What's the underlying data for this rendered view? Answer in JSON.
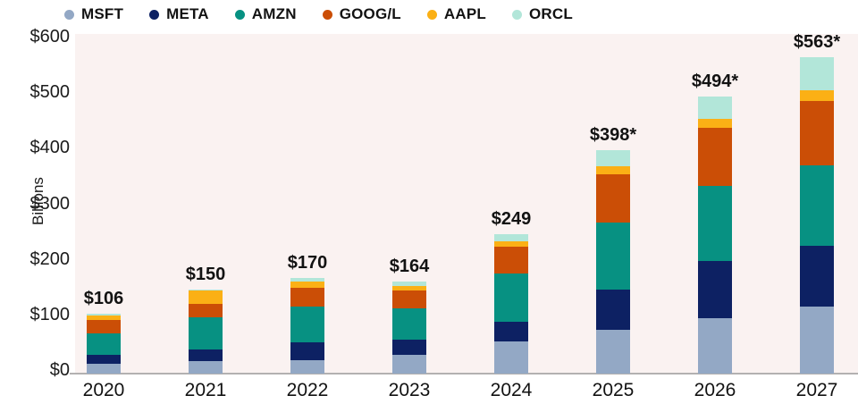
{
  "chart_data": {
    "type": "bar",
    "stacked": true,
    "ylabel": "Billions",
    "ylim": [
      0,
      600
    ],
    "grid": false,
    "legend_position": "top",
    "y_ticks": [
      {
        "value": 600,
        "label": "$600"
      },
      {
        "value": 500,
        "label": "$500"
      },
      {
        "value": 400,
        "label": "$400"
      },
      {
        "value": 300,
        "label": "$300"
      },
      {
        "value": 200,
        "label": "$200"
      },
      {
        "value": 100,
        "label": "$100"
      },
      {
        "value": 0,
        "label": "$0"
      }
    ],
    "categories": [
      "2020",
      "2021",
      "2022",
      "2023",
      "2024",
      "2025",
      "2026",
      "2027"
    ],
    "total_labels": [
      "$106",
      "$150",
      "$170",
      "$164",
      "$249",
      "$398*",
      "$494*",
      "$563*"
    ],
    "totals": [
      106,
      150,
      170,
      164,
      249,
      398,
      494,
      563
    ],
    "series": [
      {
        "name": "MSFT",
        "color": "#93a8c5",
        "values": [
          18,
          22,
          24,
          33,
          57,
          78,
          98,
          120
        ]
      },
      {
        "name": "META",
        "color": "#0d2163",
        "values": [
          16,
          21,
          32,
          28,
          35,
          72,
          103,
          108
        ]
      },
      {
        "name": "AMZN",
        "color": "#079182",
        "values": [
          38,
          58,
          64,
          55,
          86,
          119,
          133,
          142
        ]
      },
      {
        "name": "GOOG/L",
        "color": "#cb4e06",
        "values": [
          23,
          23,
          32,
          32,
          48,
          86,
          103,
          116
        ]
      },
      {
        "name": "AAPL",
        "color": "#fbb015",
        "values": [
          8,
          24,
          12,
          8,
          9,
          15,
          16,
          18
        ]
      },
      {
        "name": "ORCL",
        "color": "#b2e6d9",
        "values": [
          3,
          2,
          6,
          8,
          14,
          28,
          41,
          59
        ]
      }
    ],
    "colors": {
      "plot_background": "#faf2f1",
      "axis_line": "#b3b1b1",
      "text": "#161616"
    }
  }
}
